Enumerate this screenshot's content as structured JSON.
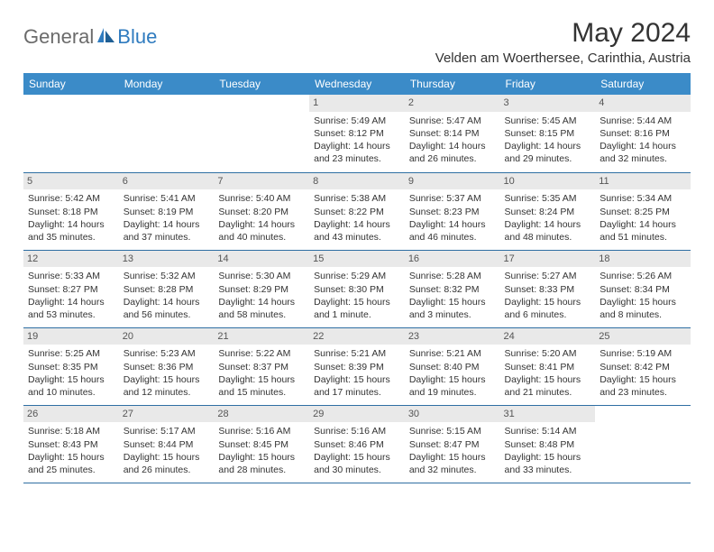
{
  "logo": {
    "part1": "General",
    "part2": "Blue"
  },
  "title": "May 2024",
  "location": "Velden am Woerthersee, Carinthia, Austria",
  "colors": {
    "header_bg": "#3b8bc8",
    "header_text": "#ffffff",
    "daynum_bg": "#e9e9e9",
    "border": "#2f6fa3",
    "logo_gray": "#6b6b6b",
    "logo_blue": "#2f7bbf"
  },
  "day_headers": [
    "Sunday",
    "Monday",
    "Tuesday",
    "Wednesday",
    "Thursday",
    "Friday",
    "Saturday"
  ],
  "weeks": [
    [
      {
        "num": "",
        "lines": []
      },
      {
        "num": "",
        "lines": []
      },
      {
        "num": "",
        "lines": []
      },
      {
        "num": "1",
        "lines": [
          "Sunrise: 5:49 AM",
          "Sunset: 8:12 PM",
          "Daylight: 14 hours",
          "and 23 minutes."
        ]
      },
      {
        "num": "2",
        "lines": [
          "Sunrise: 5:47 AM",
          "Sunset: 8:14 PM",
          "Daylight: 14 hours",
          "and 26 minutes."
        ]
      },
      {
        "num": "3",
        "lines": [
          "Sunrise: 5:45 AM",
          "Sunset: 8:15 PM",
          "Daylight: 14 hours",
          "and 29 minutes."
        ]
      },
      {
        "num": "4",
        "lines": [
          "Sunrise: 5:44 AM",
          "Sunset: 8:16 PM",
          "Daylight: 14 hours",
          "and 32 minutes."
        ]
      }
    ],
    [
      {
        "num": "5",
        "lines": [
          "Sunrise: 5:42 AM",
          "Sunset: 8:18 PM",
          "Daylight: 14 hours",
          "and 35 minutes."
        ]
      },
      {
        "num": "6",
        "lines": [
          "Sunrise: 5:41 AM",
          "Sunset: 8:19 PM",
          "Daylight: 14 hours",
          "and 37 minutes."
        ]
      },
      {
        "num": "7",
        "lines": [
          "Sunrise: 5:40 AM",
          "Sunset: 8:20 PM",
          "Daylight: 14 hours",
          "and 40 minutes."
        ]
      },
      {
        "num": "8",
        "lines": [
          "Sunrise: 5:38 AM",
          "Sunset: 8:22 PM",
          "Daylight: 14 hours",
          "and 43 minutes."
        ]
      },
      {
        "num": "9",
        "lines": [
          "Sunrise: 5:37 AM",
          "Sunset: 8:23 PM",
          "Daylight: 14 hours",
          "and 46 minutes."
        ]
      },
      {
        "num": "10",
        "lines": [
          "Sunrise: 5:35 AM",
          "Sunset: 8:24 PM",
          "Daylight: 14 hours",
          "and 48 minutes."
        ]
      },
      {
        "num": "11",
        "lines": [
          "Sunrise: 5:34 AM",
          "Sunset: 8:25 PM",
          "Daylight: 14 hours",
          "and 51 minutes."
        ]
      }
    ],
    [
      {
        "num": "12",
        "lines": [
          "Sunrise: 5:33 AM",
          "Sunset: 8:27 PM",
          "Daylight: 14 hours",
          "and 53 minutes."
        ]
      },
      {
        "num": "13",
        "lines": [
          "Sunrise: 5:32 AM",
          "Sunset: 8:28 PM",
          "Daylight: 14 hours",
          "and 56 minutes."
        ]
      },
      {
        "num": "14",
        "lines": [
          "Sunrise: 5:30 AM",
          "Sunset: 8:29 PM",
          "Daylight: 14 hours",
          "and 58 minutes."
        ]
      },
      {
        "num": "15",
        "lines": [
          "Sunrise: 5:29 AM",
          "Sunset: 8:30 PM",
          "Daylight: 15 hours",
          "and 1 minute."
        ]
      },
      {
        "num": "16",
        "lines": [
          "Sunrise: 5:28 AM",
          "Sunset: 8:32 PM",
          "Daylight: 15 hours",
          "and 3 minutes."
        ]
      },
      {
        "num": "17",
        "lines": [
          "Sunrise: 5:27 AM",
          "Sunset: 8:33 PM",
          "Daylight: 15 hours",
          "and 6 minutes."
        ]
      },
      {
        "num": "18",
        "lines": [
          "Sunrise: 5:26 AM",
          "Sunset: 8:34 PM",
          "Daylight: 15 hours",
          "and 8 minutes."
        ]
      }
    ],
    [
      {
        "num": "19",
        "lines": [
          "Sunrise: 5:25 AM",
          "Sunset: 8:35 PM",
          "Daylight: 15 hours",
          "and 10 minutes."
        ]
      },
      {
        "num": "20",
        "lines": [
          "Sunrise: 5:23 AM",
          "Sunset: 8:36 PM",
          "Daylight: 15 hours",
          "and 12 minutes."
        ]
      },
      {
        "num": "21",
        "lines": [
          "Sunrise: 5:22 AM",
          "Sunset: 8:37 PM",
          "Daylight: 15 hours",
          "and 15 minutes."
        ]
      },
      {
        "num": "22",
        "lines": [
          "Sunrise: 5:21 AM",
          "Sunset: 8:39 PM",
          "Daylight: 15 hours",
          "and 17 minutes."
        ]
      },
      {
        "num": "23",
        "lines": [
          "Sunrise: 5:21 AM",
          "Sunset: 8:40 PM",
          "Daylight: 15 hours",
          "and 19 minutes."
        ]
      },
      {
        "num": "24",
        "lines": [
          "Sunrise: 5:20 AM",
          "Sunset: 8:41 PM",
          "Daylight: 15 hours",
          "and 21 minutes."
        ]
      },
      {
        "num": "25",
        "lines": [
          "Sunrise: 5:19 AM",
          "Sunset: 8:42 PM",
          "Daylight: 15 hours",
          "and 23 minutes."
        ]
      }
    ],
    [
      {
        "num": "26",
        "lines": [
          "Sunrise: 5:18 AM",
          "Sunset: 8:43 PM",
          "Daylight: 15 hours",
          "and 25 minutes."
        ]
      },
      {
        "num": "27",
        "lines": [
          "Sunrise: 5:17 AM",
          "Sunset: 8:44 PM",
          "Daylight: 15 hours",
          "and 26 minutes."
        ]
      },
      {
        "num": "28",
        "lines": [
          "Sunrise: 5:16 AM",
          "Sunset: 8:45 PM",
          "Daylight: 15 hours",
          "and 28 minutes."
        ]
      },
      {
        "num": "29",
        "lines": [
          "Sunrise: 5:16 AM",
          "Sunset: 8:46 PM",
          "Daylight: 15 hours",
          "and 30 minutes."
        ]
      },
      {
        "num": "30",
        "lines": [
          "Sunrise: 5:15 AM",
          "Sunset: 8:47 PM",
          "Daylight: 15 hours",
          "and 32 minutes."
        ]
      },
      {
        "num": "31",
        "lines": [
          "Sunrise: 5:14 AM",
          "Sunset: 8:48 PM",
          "Daylight: 15 hours",
          "and 33 minutes."
        ]
      },
      {
        "num": "",
        "lines": []
      }
    ]
  ]
}
